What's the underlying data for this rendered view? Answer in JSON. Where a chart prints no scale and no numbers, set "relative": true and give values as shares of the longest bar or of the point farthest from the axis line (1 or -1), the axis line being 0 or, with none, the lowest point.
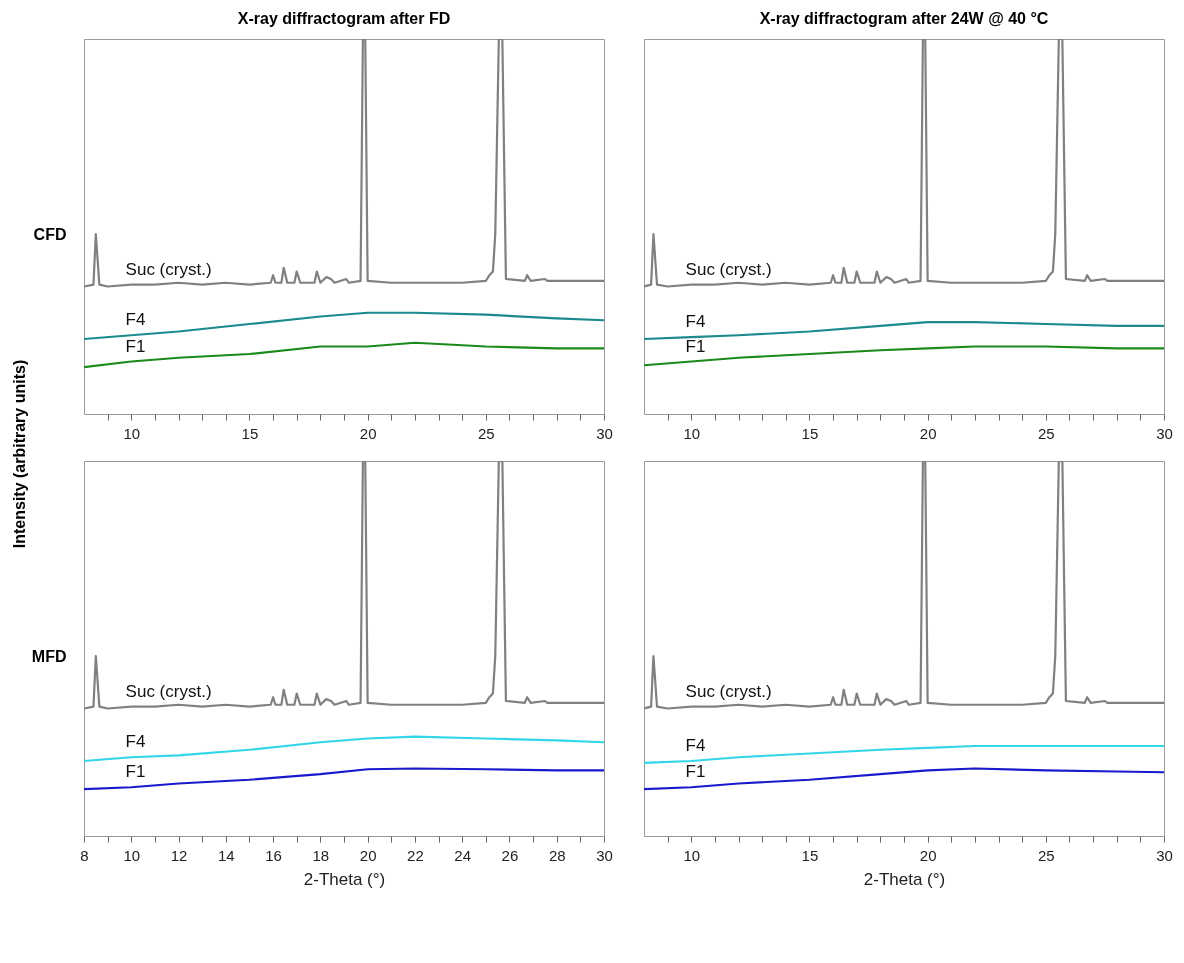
{
  "chart_data": [
    {
      "type": "line",
      "title": "X-ray diffractogram after FD",
      "ylabel": "CFD",
      "annotations": [
        "Intensity (arbitrary units)"
      ],
      "relative": true,
      "tick_labels": "x",
      "grid": false,
      "xlim": [
        8,
        30
      ],
      "xticks": [
        {
          "value": 9,
          "label": null
        },
        10,
        {
          "value": 11,
          "label": null
        },
        {
          "value": 12,
          "label": null
        },
        {
          "value": 13,
          "label": null
        },
        {
          "value": 14,
          "label": null
        },
        15,
        {
          "value": 16,
          "label": null
        },
        {
          "value": 17,
          "label": null
        },
        {
          "value": 18,
          "label": null
        },
        {
          "value": 19,
          "label": null
        },
        20,
        {
          "value": 21,
          "label": null
        },
        {
          "value": 22,
          "label": null
        },
        {
          "value": 23,
          "label": null
        },
        {
          "value": 24,
          "label": null
        },
        25,
        {
          "value": 26,
          "label": null
        },
        {
          "value": 27,
          "label": null
        },
        {
          "value": 28,
          "label": null
        },
        {
          "value": 29,
          "label": null
        },
        30
      ],
      "series": [
        {
          "name": "Suc (cryst.)",
          "color": "#808080",
          "x": [
            8,
            8.4,
            8.5,
            8.65,
            9,
            10,
            11,
            12,
            13,
            14,
            15,
            15.9,
            16,
            16.1,
            16.35,
            16.45,
            16.6,
            16.9,
            17,
            17.15,
            17.75,
            17.85,
            18,
            18.25,
            18.45,
            18.6,
            19.1,
            19.2,
            19.7,
            19.8,
            19.9,
            20,
            21,
            22,
            23,
            24,
            25,
            25.15,
            25.3,
            25.4,
            25.55,
            25.7,
            25.85,
            26.65,
            26.75,
            26.9,
            27.5,
            27.6,
            28,
            29,
            30
          ],
          "values": [
            0.34,
            0.345,
            0.48,
            0.345,
            0.34,
            0.345,
            0.345,
            0.35,
            0.345,
            0.35,
            0.345,
            0.35,
            0.37,
            0.35,
            0.35,
            0.39,
            0.35,
            0.35,
            0.38,
            0.35,
            0.35,
            0.38,
            0.35,
            0.365,
            0.36,
            0.35,
            0.36,
            0.35,
            0.355,
            1,
            1,
            0.355,
            0.35,
            0.35,
            0.35,
            0.35,
            0.355,
            0.37,
            0.38,
            0.48,
            1,
            1,
            0.36,
            0.355,
            0.37,
            0.355,
            0.36,
            0.355,
            0.355,
            0.355,
            0.355
          ]
        },
        {
          "name": "F4",
          "color": "#1a8a8f",
          "x": [
            8,
            10,
            12,
            15,
            18,
            20,
            22,
            25,
            28,
            30
          ],
          "values": [
            0.2,
            0.21,
            0.22,
            0.24,
            0.26,
            0.27,
            0.27,
            0.265,
            0.255,
            0.25
          ]
        },
        {
          "name": "F1",
          "color": "#1a8a1a",
          "x": [
            8,
            10,
            12,
            15,
            18,
            20,
            22,
            25,
            28,
            30
          ],
          "values": [
            0.125,
            0.14,
            0.15,
            0.16,
            0.18,
            0.18,
            0.19,
            0.18,
            0.175,
            0.175
          ]
        }
      ]
    },
    {
      "type": "line",
      "title": "X-ray diffractogram after 24W @ 40 °C",
      "relative": true,
      "tick_labels": "x",
      "grid": false,
      "xlim": [
        8,
        30
      ],
      "xticks": [
        {
          "value": 9,
          "label": null
        },
        10,
        {
          "value": 11,
          "label": null
        },
        {
          "value": 12,
          "label": null
        },
        {
          "value": 13,
          "label": null
        },
        {
          "value": 14,
          "label": null
        },
        15,
        {
          "value": 16,
          "label": null
        },
        {
          "value": 17,
          "label": null
        },
        {
          "value": 18,
          "label": null
        },
        {
          "value": 19,
          "label": null
        },
        20,
        {
          "value": 21,
          "label": null
        },
        {
          "value": 22,
          "label": null
        },
        {
          "value": 23,
          "label": null
        },
        {
          "value": 24,
          "label": null
        },
        25,
        {
          "value": 26,
          "label": null
        },
        {
          "value": 27,
          "label": null
        },
        {
          "value": 28,
          "label": null
        },
        {
          "value": 29,
          "label": null
        },
        30
      ],
      "series": [
        {
          "name": "Suc (cryst.)",
          "color": "#808080",
          "x": [
            8,
            8.3,
            8.4,
            8.55,
            9,
            10,
            11,
            12,
            13,
            14,
            15,
            15.9,
            16,
            16.1,
            16.35,
            16.45,
            16.6,
            16.9,
            17,
            17.15,
            17.75,
            17.85,
            18,
            18.25,
            18.45,
            18.6,
            19.1,
            19.2,
            19.7,
            19.8,
            19.9,
            20,
            21,
            22,
            23,
            24,
            25,
            25.15,
            25.3,
            25.4,
            25.55,
            25.7,
            25.85,
            26.65,
            26.75,
            26.9,
            27.5,
            27.6,
            28,
            29,
            30
          ],
          "values": [
            0.34,
            0.345,
            0.48,
            0.345,
            0.34,
            0.345,
            0.345,
            0.35,
            0.345,
            0.35,
            0.345,
            0.35,
            0.37,
            0.35,
            0.35,
            0.39,
            0.35,
            0.35,
            0.38,
            0.35,
            0.35,
            0.38,
            0.35,
            0.365,
            0.36,
            0.35,
            0.36,
            0.35,
            0.355,
            1,
            1,
            0.355,
            0.35,
            0.35,
            0.35,
            0.35,
            0.355,
            0.37,
            0.38,
            0.48,
            1,
            1,
            0.36,
            0.355,
            0.37,
            0.355,
            0.36,
            0.355,
            0.355,
            0.355,
            0.355
          ]
        },
        {
          "name": "F4",
          "color": "#1a8a8f",
          "x": [
            8,
            10,
            12,
            15,
            18,
            20,
            22,
            25,
            28,
            30
          ],
          "values": [
            0.2,
            0.205,
            0.21,
            0.22,
            0.235,
            0.245,
            0.245,
            0.24,
            0.235,
            0.235
          ]
        },
        {
          "name": "F1",
          "color": "#1a8a1a",
          "x": [
            8,
            10,
            12,
            15,
            18,
            20,
            22,
            25,
            28,
            30
          ],
          "values": [
            0.13,
            0.14,
            0.15,
            0.16,
            0.17,
            0.175,
            0.18,
            0.18,
            0.175,
            0.175
          ]
        }
      ]
    },
    {
      "type": "line",
      "xlabel": "2-Theta (°)",
      "ylabel": "MFD",
      "relative": true,
      "tick_labels": "x",
      "grid": false,
      "xlim": [
        8,
        30
      ],
      "xticks": [
        8,
        {
          "value": 9,
          "label": null
        },
        10,
        {
          "value": 11,
          "label": null
        },
        12,
        {
          "value": 13,
          "label": null
        },
        14,
        {
          "value": 15,
          "label": null
        },
        16,
        {
          "value": 17,
          "label": null
        },
        18,
        {
          "value": 19,
          "label": null
        },
        20,
        {
          "value": 21,
          "label": null
        },
        22,
        {
          "value": 23,
          "label": null
        },
        24,
        {
          "value": 25,
          "label": null
        },
        26,
        {
          "value": 27,
          "label": null
        },
        28,
        {
          "value": 29,
          "label": null
        },
        30
      ],
      "series": [
        {
          "name": "Suc (cryst.)",
          "color": "#808080",
          "x": [
            8,
            8.4,
            8.5,
            8.65,
            9,
            10,
            11,
            12,
            13,
            14,
            15,
            15.9,
            16,
            16.1,
            16.35,
            16.45,
            16.6,
            16.9,
            17,
            17.15,
            17.75,
            17.85,
            18,
            18.25,
            18.45,
            18.6,
            19.1,
            19.2,
            19.7,
            19.8,
            19.9,
            20,
            21,
            22,
            23,
            24,
            25,
            25.15,
            25.3,
            25.4,
            25.55,
            25.7,
            25.85,
            26.65,
            26.75,
            26.9,
            27.5,
            27.6,
            28,
            29,
            30
          ],
          "values": [
            0.34,
            0.345,
            0.48,
            0.345,
            0.34,
            0.345,
            0.345,
            0.35,
            0.345,
            0.35,
            0.345,
            0.35,
            0.37,
            0.35,
            0.35,
            0.39,
            0.35,
            0.35,
            0.38,
            0.35,
            0.35,
            0.38,
            0.35,
            0.365,
            0.36,
            0.35,
            0.36,
            0.35,
            0.355,
            1,
            1,
            0.355,
            0.35,
            0.35,
            0.35,
            0.35,
            0.355,
            0.37,
            0.38,
            0.48,
            1,
            1,
            0.36,
            0.355,
            0.37,
            0.355,
            0.36,
            0.355,
            0.355,
            0.355,
            0.355
          ]
        },
        {
          "name": "F4",
          "color": "#33d6e8",
          "x": [
            8,
            10,
            12,
            15,
            18,
            20,
            22,
            25,
            28,
            30
          ],
          "values": [
            0.2,
            0.21,
            0.215,
            0.23,
            0.25,
            0.26,
            0.265,
            0.26,
            0.255,
            0.25
          ]
        },
        {
          "name": "F1",
          "color": "#1a1acc",
          "x": [
            8,
            10,
            12,
            15,
            18,
            20,
            22,
            25,
            28,
            30
          ],
          "values": [
            0.125,
            0.13,
            0.14,
            0.15,
            0.165,
            0.178,
            0.18,
            0.178,
            0.175,
            0.175
          ]
        }
      ]
    },
    {
      "type": "line",
      "xlabel": "2-Theta (°)",
      "relative": true,
      "tick_labels": "x",
      "grid": false,
      "xlim": [
        8,
        30
      ],
      "xticks": [
        {
          "value": 9,
          "label": null
        },
        10,
        {
          "value": 11,
          "label": null
        },
        {
          "value": 12,
          "label": null
        },
        {
          "value": 13,
          "label": null
        },
        {
          "value": 14,
          "label": null
        },
        15,
        {
          "value": 16,
          "label": null
        },
        {
          "value": 17,
          "label": null
        },
        {
          "value": 18,
          "label": null
        },
        {
          "value": 19,
          "label": null
        },
        20,
        {
          "value": 21,
          "label": null
        },
        {
          "value": 22,
          "label": null
        },
        {
          "value": 23,
          "label": null
        },
        {
          "value": 24,
          "label": null
        },
        25,
        {
          "value": 26,
          "label": null
        },
        {
          "value": 27,
          "label": null
        },
        {
          "value": 28,
          "label": null
        },
        {
          "value": 29,
          "label": null
        },
        30
      ],
      "series": [
        {
          "name": "Suc (cryst.)",
          "color": "#808080",
          "x": [
            8,
            8.3,
            8.4,
            8.55,
            9,
            10,
            11,
            12,
            13,
            14,
            15,
            15.9,
            16,
            16.1,
            16.35,
            16.45,
            16.6,
            16.9,
            17,
            17.15,
            17.75,
            17.85,
            18,
            18.25,
            18.45,
            18.6,
            19.1,
            19.2,
            19.7,
            19.8,
            19.9,
            20,
            21,
            22,
            23,
            24,
            25,
            25.15,
            25.3,
            25.4,
            25.55,
            25.7,
            25.85,
            26.65,
            26.75,
            26.9,
            27.5,
            27.6,
            28,
            29,
            30
          ],
          "values": [
            0.34,
            0.345,
            0.48,
            0.345,
            0.34,
            0.345,
            0.345,
            0.35,
            0.345,
            0.35,
            0.345,
            0.35,
            0.37,
            0.35,
            0.35,
            0.39,
            0.35,
            0.35,
            0.38,
            0.35,
            0.35,
            0.38,
            0.35,
            0.365,
            0.36,
            0.35,
            0.36,
            0.35,
            0.355,
            1,
            1,
            0.355,
            0.35,
            0.35,
            0.35,
            0.35,
            0.355,
            0.37,
            0.38,
            0.48,
            1,
            1,
            0.36,
            0.355,
            0.37,
            0.355,
            0.36,
            0.355,
            0.355,
            0.355,
            0.355
          ]
        },
        {
          "name": "F4",
          "color": "#33d6e8",
          "x": [
            8,
            10,
            12,
            15,
            18,
            20,
            22,
            25,
            28,
            30
          ],
          "values": [
            0.195,
            0.2,
            0.21,
            0.22,
            0.23,
            0.235,
            0.24,
            0.24,
            0.24,
            0.24
          ]
        },
        {
          "name": "F1",
          "color": "#1a1acc",
          "x": [
            8,
            10,
            12,
            15,
            18,
            20,
            22,
            25,
            28,
            30
          ],
          "values": [
            0.125,
            0.13,
            0.14,
            0.15,
            0.165,
            0.175,
            0.18,
            0.175,
            0.172,
            0.17
          ]
        }
      ]
    }
  ]
}
